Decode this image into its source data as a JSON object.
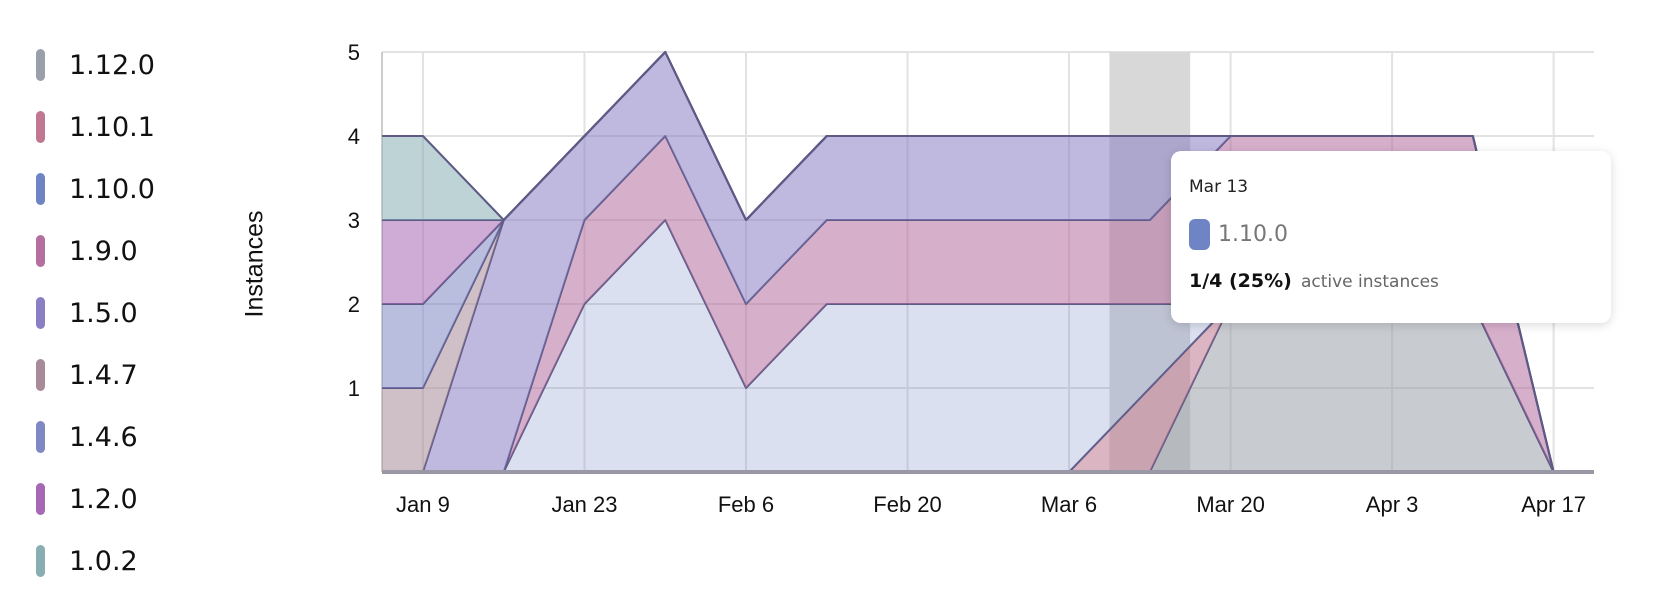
{
  "chart_data": {
    "type": "area",
    "stacked": true,
    "ylabel": "Instances",
    "xlabel": "",
    "ylim": [
      0,
      5
    ],
    "yticks": [
      "1",
      "2",
      "3",
      "4",
      "5"
    ],
    "xticks": [
      "Jan 9",
      "Jan 23",
      "Feb 6",
      "Feb 20",
      "Mar 6",
      "Mar 20",
      "Apr 3",
      "Apr 17"
    ],
    "grid": true,
    "legend_position": "left",
    "x": [
      "Jan 5",
      "Jan 9",
      "Jan 16",
      "Jan 23",
      "Jan 30",
      "Feb 6",
      "Feb 13",
      "Feb 20",
      "Feb 27",
      "Mar 6",
      "Mar 13",
      "Mar 20",
      "Mar 27",
      "Apr 3",
      "Apr 10",
      "Apr 17",
      "Apr 20"
    ],
    "series": [
      {
        "name": "1.12.0",
        "color": "#9aa0aa",
        "values": [
          0,
          0,
          0,
          0,
          0,
          0,
          0,
          0,
          0,
          0,
          0,
          2,
          2,
          2,
          2,
          0,
          0
        ]
      },
      {
        "name": "1.10.1",
        "color": "#c07892",
        "values": [
          0,
          0,
          0,
          0,
          0,
          0,
          0,
          0,
          0,
          0,
          1,
          0,
          0,
          0,
          0,
          0,
          0
        ]
      },
      {
        "name": "1.10.0",
        "color": "#6f84c4",
        "values": [
          0,
          0,
          0,
          2,
          3,
          1,
          2,
          2,
          2,
          2,
          1,
          0,
          0,
          0,
          0,
          0,
          0
        ]
      },
      {
        "name": "1.9.0",
        "color": "#b46ea0",
        "values": [
          0,
          0,
          0,
          1,
          1,
          1,
          1,
          1,
          1,
          1,
          1,
          2,
          2,
          2,
          2,
          0,
          0
        ]
      },
      {
        "name": "1.5.0",
        "color": "#8a7fc4",
        "values": [
          0,
          0,
          3,
          1,
          1,
          1,
          1,
          1,
          1,
          1,
          1,
          0,
          0,
          0,
          0,
          0,
          0
        ]
      },
      {
        "name": "1.4.7",
        "color": "#a88a98",
        "values": [
          1,
          1,
          0,
          0,
          0,
          0,
          0,
          0,
          0,
          0,
          0,
          0,
          0,
          0,
          0,
          0,
          0
        ]
      },
      {
        "name": "1.4.6",
        "color": "#8088c4",
        "values": [
          1,
          1,
          0,
          0,
          0,
          0,
          0,
          0,
          0,
          0,
          0,
          0,
          0,
          0,
          0,
          0,
          0
        ]
      },
      {
        "name": "1.2.0",
        "color": "#a668b4",
        "values": [
          1,
          1,
          0,
          0,
          0,
          0,
          0,
          0,
          0,
          0,
          0,
          0,
          0,
          0,
          0,
          0,
          0
        ]
      },
      {
        "name": "1.0.2",
        "color": "#88aeb4",
        "values": [
          1,
          1,
          0,
          0,
          0,
          0,
          0,
          0,
          0,
          0,
          0,
          0,
          0,
          0,
          0,
          0,
          0
        ]
      }
    ],
    "hover": {
      "date": "Mar 13"
    }
  },
  "legend": [
    {
      "label": "1.12.0",
      "color": "#9aa0aa"
    },
    {
      "label": "1.10.1",
      "color": "#c07892"
    },
    {
      "label": "1.10.0",
      "color": "#6f84c4"
    },
    {
      "label": "1.9.0",
      "color": "#b46ea0"
    },
    {
      "label": "1.5.0",
      "color": "#8a7fc4"
    },
    {
      "label": "1.4.7",
      "color": "#a88a98"
    },
    {
      "label": "1.4.6",
      "color": "#8088c4"
    },
    {
      "label": "1.2.0",
      "color": "#a668b4"
    },
    {
      "label": "1.0.2",
      "color": "#88aeb4"
    }
  ],
  "tooltip": {
    "date": "Mar 13",
    "series": "1.10.0",
    "color": "#6f84c4",
    "count": "1/4 (25%)",
    "suffix": "active instances"
  }
}
